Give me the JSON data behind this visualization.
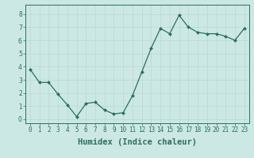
{
  "x": [
    0,
    1,
    2,
    3,
    4,
    5,
    6,
    7,
    8,
    9,
    10,
    11,
    12,
    13,
    14,
    15,
    16,
    17,
    18,
    19,
    20,
    21,
    22,
    23
  ],
  "y": [
    3.8,
    2.8,
    2.8,
    1.9,
    1.1,
    0.2,
    1.2,
    1.3,
    0.7,
    0.4,
    0.5,
    1.8,
    3.6,
    5.4,
    6.9,
    6.5,
    7.9,
    7.0,
    6.6,
    6.5,
    6.5,
    6.3,
    6.0,
    6.9
  ],
  "line_color": "#2a6e62",
  "marker": "D",
  "marker_size": 2.0,
  "line_width": 0.9,
  "bg_color": "#cce8e4",
  "grid_color": "#b8d8d4",
  "xlabel": "Humidex (Indice chaleur)",
  "xlabel_fontsize": 7.5,
  "xlabel_weight": "bold",
  "ylabel_ticks": [
    0,
    1,
    2,
    3,
    4,
    5,
    6,
    7,
    8
  ],
  "xtick_labels": [
    "0",
    "1",
    "2",
    "3",
    "4",
    "5",
    "6",
    "7",
    "8",
    "9",
    "10",
    "11",
    "12",
    "13",
    "14",
    "15",
    "16",
    "17",
    "18",
    "19",
    "20",
    "21",
    "22",
    "23"
  ],
  "xlim": [
    -0.5,
    23.5
  ],
  "ylim": [
    -0.3,
    8.7
  ],
  "tick_fontsize": 5.5,
  "axis_color": "#2a6e62",
  "spine_color": "#2a6e62"
}
